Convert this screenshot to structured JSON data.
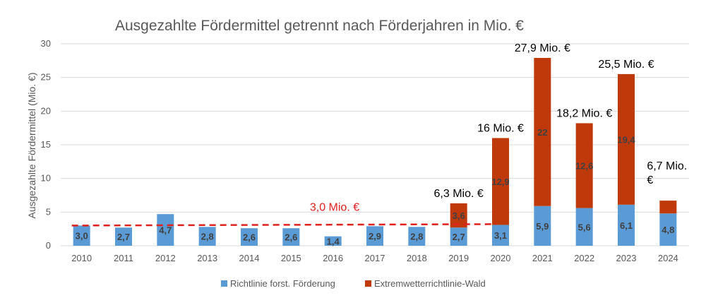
{
  "chart_data": {
    "type": "bar",
    "stacked": true,
    "title": "Ausgezahlte Fördermittel getrennt nach Förderjahren in Mio. €",
    "xlabel": "",
    "ylabel": "Ausgezahlte Fördermittel (Mio. €)",
    "ylim": [
      0,
      30
    ],
    "yticks": [
      0,
      5,
      10,
      15,
      20,
      25,
      30
    ],
    "grid": true,
    "legend_position": "bottom",
    "categories": [
      "2010",
      "2011",
      "2012",
      "2013",
      "2014",
      "2015",
      "2016",
      "2017",
      "2018",
      "2019",
      "2020",
      "2021",
      "2022",
      "2023",
      "2024"
    ],
    "series": [
      {
        "name": "Richtlinie forst. Förderung",
        "color": "#5b9bd5",
        "values": [
          3.0,
          2.7,
          4.7,
          2.8,
          2.6,
          2.6,
          1.4,
          2.9,
          2.8,
          2.7,
          3.1,
          5.9,
          5.6,
          6.1,
          4.8
        ],
        "labels": [
          "3,0",
          "2,7",
          "4,7",
          "2,8",
          "2,6",
          "2,6",
          "1,4",
          "2,9",
          "2,8",
          "2,7",
          "3,1",
          "5,9",
          "5,6",
          "6,1",
          "4,8"
        ]
      },
      {
        "name": "Extremwetterrichtlinie-Wald",
        "color": "#c0390b",
        "values": [
          0,
          0,
          0,
          0,
          0,
          0,
          0,
          0,
          0,
          3.6,
          12.9,
          22,
          12.6,
          19.4,
          1.9
        ],
        "labels": [
          "",
          "",
          "",
          "",
          "",
          "",
          "",
          "",
          "",
          "3,6",
          "12,9",
          "22",
          "12,6",
          "19,4",
          ""
        ]
      }
    ],
    "totals": [
      {
        "category": "2019",
        "text": "6,3 Mio. €"
      },
      {
        "category": "2020",
        "text": "16 Mio. €"
      },
      {
        "category": "2021",
        "text": "27,9 Mio. €"
      },
      {
        "category": "2022",
        "text": "18,2 Mio. €"
      },
      {
        "category": "2023",
        "text": "25,5 Mio. €"
      },
      {
        "category": "2024",
        "text": [
          "6,7 Mio.",
          "€"
        ]
      }
    ],
    "reference_line": {
      "value": 3.0,
      "label": "3,0 Mio. €",
      "color": "#e0211d",
      "style": "dashed",
      "from_category": "2010",
      "to_category": "2020"
    }
  }
}
